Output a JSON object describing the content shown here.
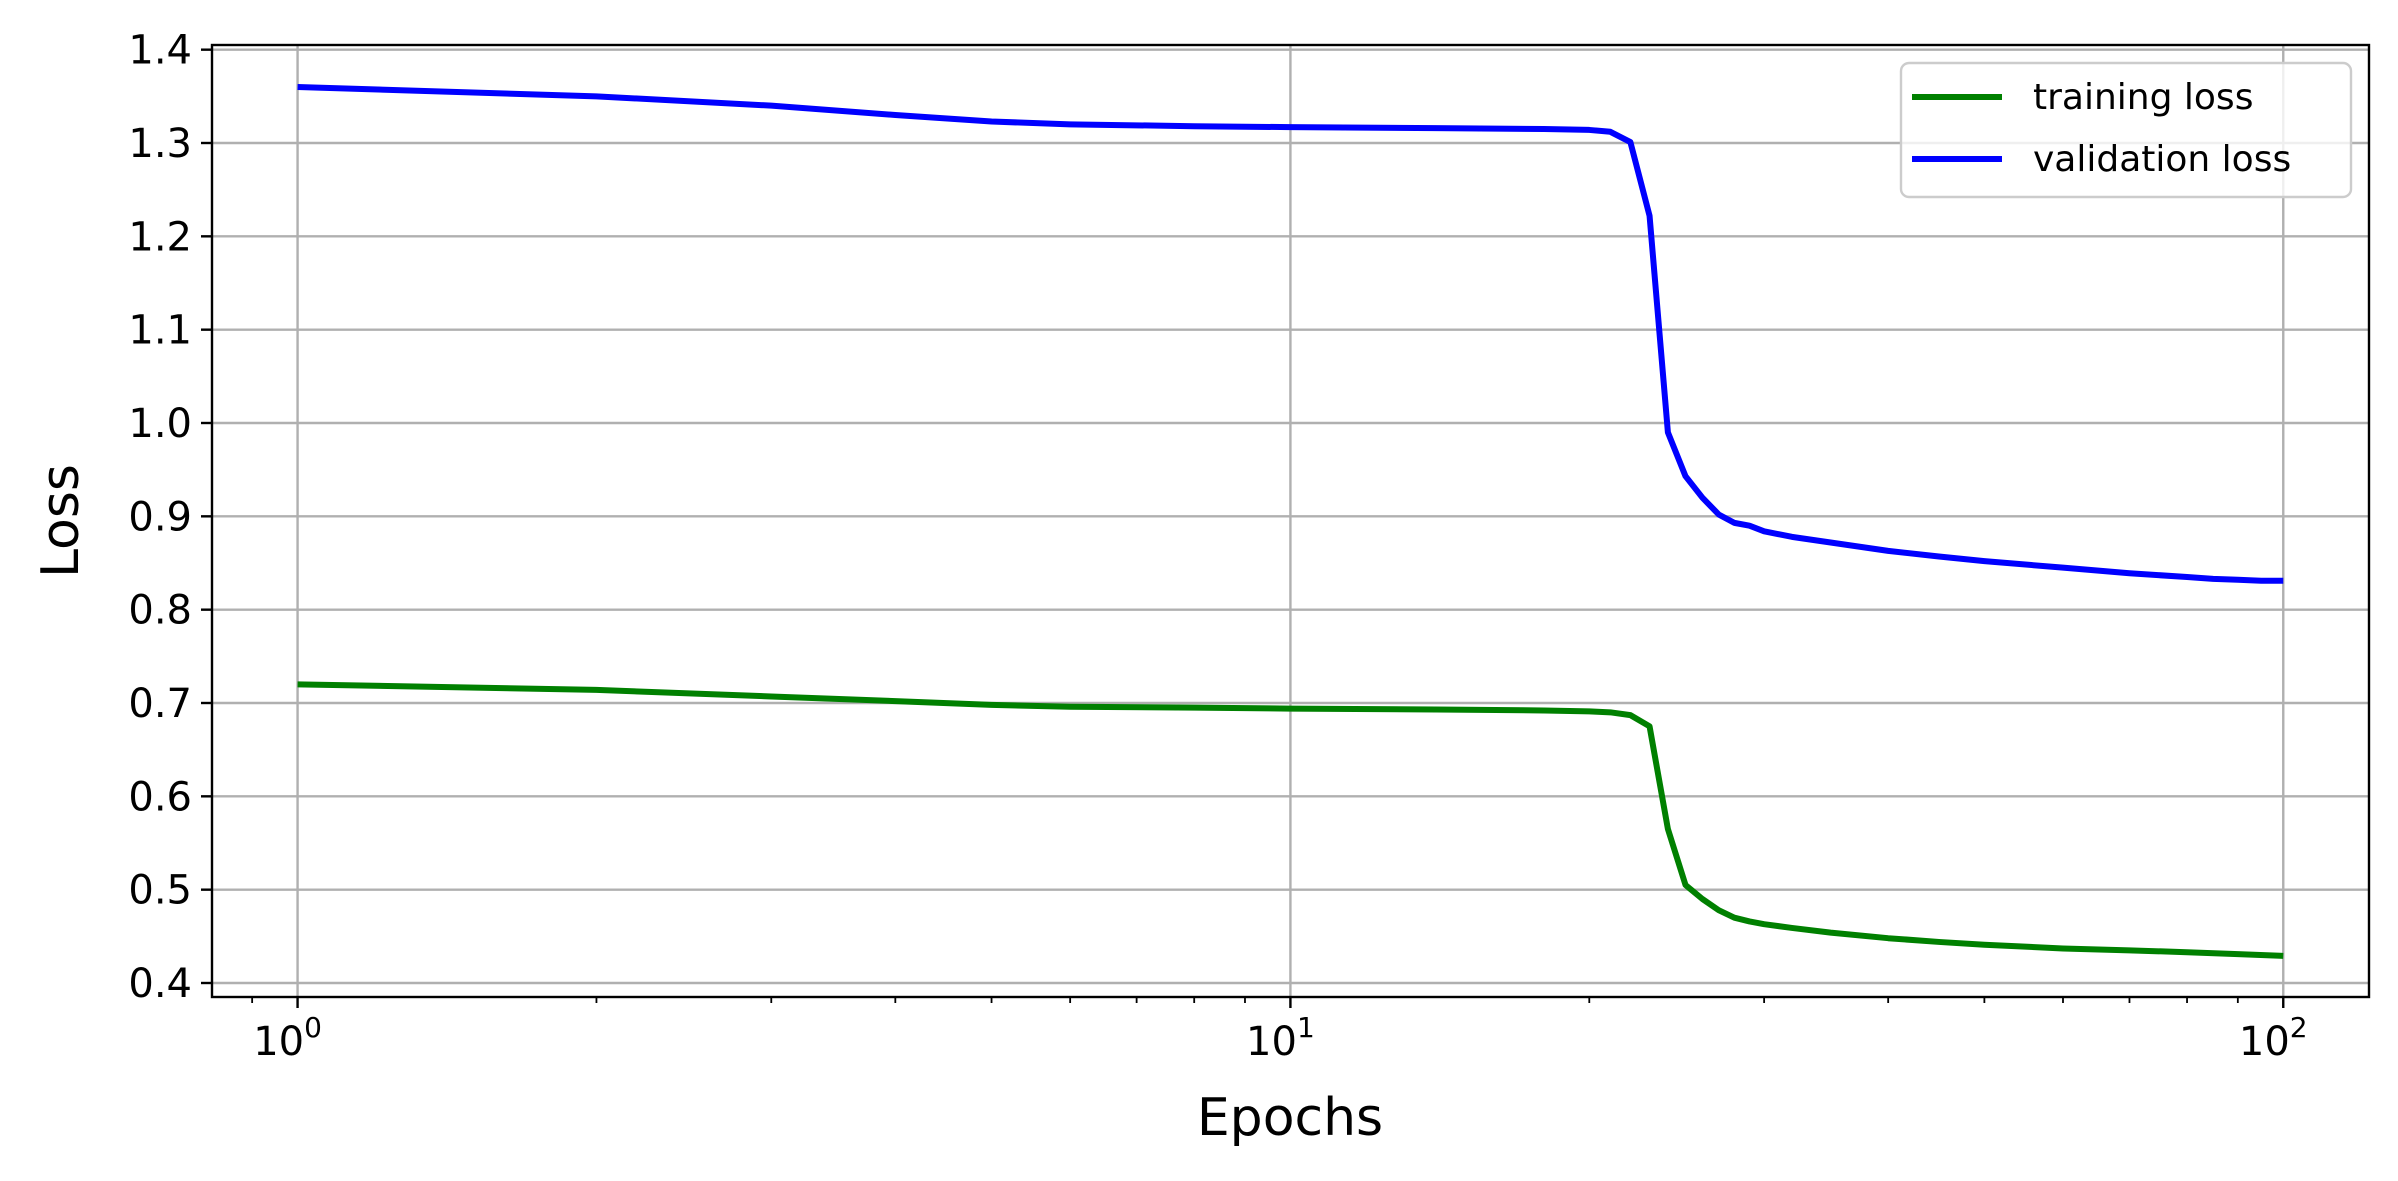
{
  "chart_data": {
    "type": "line",
    "title": "",
    "xlabel": "Epochs",
    "ylabel": "Loss",
    "xscale": "log",
    "xlim": [
      0.82,
      122
    ],
    "ylim": [
      0.385,
      1.405
    ],
    "grid": true,
    "legend_position": "top-right",
    "x_ticks": [
      {
        "value": 1,
        "base": "10",
        "exp": "0"
      },
      {
        "value": 10,
        "base": "10",
        "exp": "1"
      },
      {
        "value": 100,
        "base": "10",
        "exp": "2"
      }
    ],
    "y_ticks": [
      {
        "value": 0.4,
        "label": "0.4"
      },
      {
        "value": 0.5,
        "label": "0.5"
      },
      {
        "value": 0.6,
        "label": "0.6"
      },
      {
        "value": 0.7,
        "label": "0.7"
      },
      {
        "value": 0.8,
        "label": "0.8"
      },
      {
        "value": 0.9,
        "label": "0.9"
      },
      {
        "value": 1.0,
        "label": "1.0"
      },
      {
        "value": 1.1,
        "label": "1.1"
      },
      {
        "value": 1.2,
        "label": "1.2"
      },
      {
        "value": 1.3,
        "label": "1.3"
      },
      {
        "value": 1.4,
        "label": "1.4"
      }
    ],
    "series": [
      {
        "name": "training loss",
        "color": "#008000",
        "points": [
          [
            1,
            0.72
          ],
          [
            2,
            0.714
          ],
          [
            3,
            0.707
          ],
          [
            4,
            0.702
          ],
          [
            5,
            0.698
          ],
          [
            6,
            0.696
          ],
          [
            8,
            0.695
          ],
          [
            10,
            0.694
          ],
          [
            14,
            0.693
          ],
          [
            18,
            0.692
          ],
          [
            20,
            0.691
          ],
          [
            21,
            0.69
          ],
          [
            22,
            0.687
          ],
          [
            23,
            0.675
          ],
          [
            24,
            0.565
          ],
          [
            25,
            0.505
          ],
          [
            26,
            0.49
          ],
          [
            27,
            0.478
          ],
          [
            28,
            0.47
          ],
          [
            29,
            0.466
          ],
          [
            30,
            0.463
          ],
          [
            32,
            0.459
          ],
          [
            35,
            0.454
          ],
          [
            40,
            0.448
          ],
          [
            45,
            0.444
          ],
          [
            50,
            0.441
          ],
          [
            60,
            0.437
          ],
          [
            70,
            0.435
          ],
          [
            80,
            0.433
          ],
          [
            90,
            0.431
          ],
          [
            100,
            0.429
          ]
        ]
      },
      {
        "name": "validation loss",
        "color": "#0000ff",
        "points": [
          [
            1,
            1.36
          ],
          [
            2,
            1.35
          ],
          [
            3,
            1.34
          ],
          [
            4,
            1.33
          ],
          [
            5,
            1.323
          ],
          [
            6,
            1.32
          ],
          [
            8,
            1.318
          ],
          [
            10,
            1.317
          ],
          [
            14,
            1.316
          ],
          [
            18,
            1.315
          ],
          [
            20,
            1.314
          ],
          [
            21,
            1.312
          ],
          [
            22,
            1.301
          ],
          [
            23,
            1.222
          ],
          [
            24,
            0.99
          ],
          [
            25,
            0.943
          ],
          [
            26,
            0.92
          ],
          [
            27,
            0.902
          ],
          [
            28,
            0.893
          ],
          [
            29,
            0.89
          ],
          [
            30,
            0.884
          ],
          [
            32,
            0.878
          ],
          [
            35,
            0.872
          ],
          [
            40,
            0.863
          ],
          [
            45,
            0.857
          ],
          [
            50,
            0.852
          ],
          [
            60,
            0.845
          ],
          [
            70,
            0.839
          ],
          [
            80,
            0.835
          ],
          [
            85,
            0.833
          ],
          [
            90,
            0.832
          ],
          [
            95,
            0.831
          ],
          [
            100,
            0.831
          ]
        ]
      }
    ]
  }
}
